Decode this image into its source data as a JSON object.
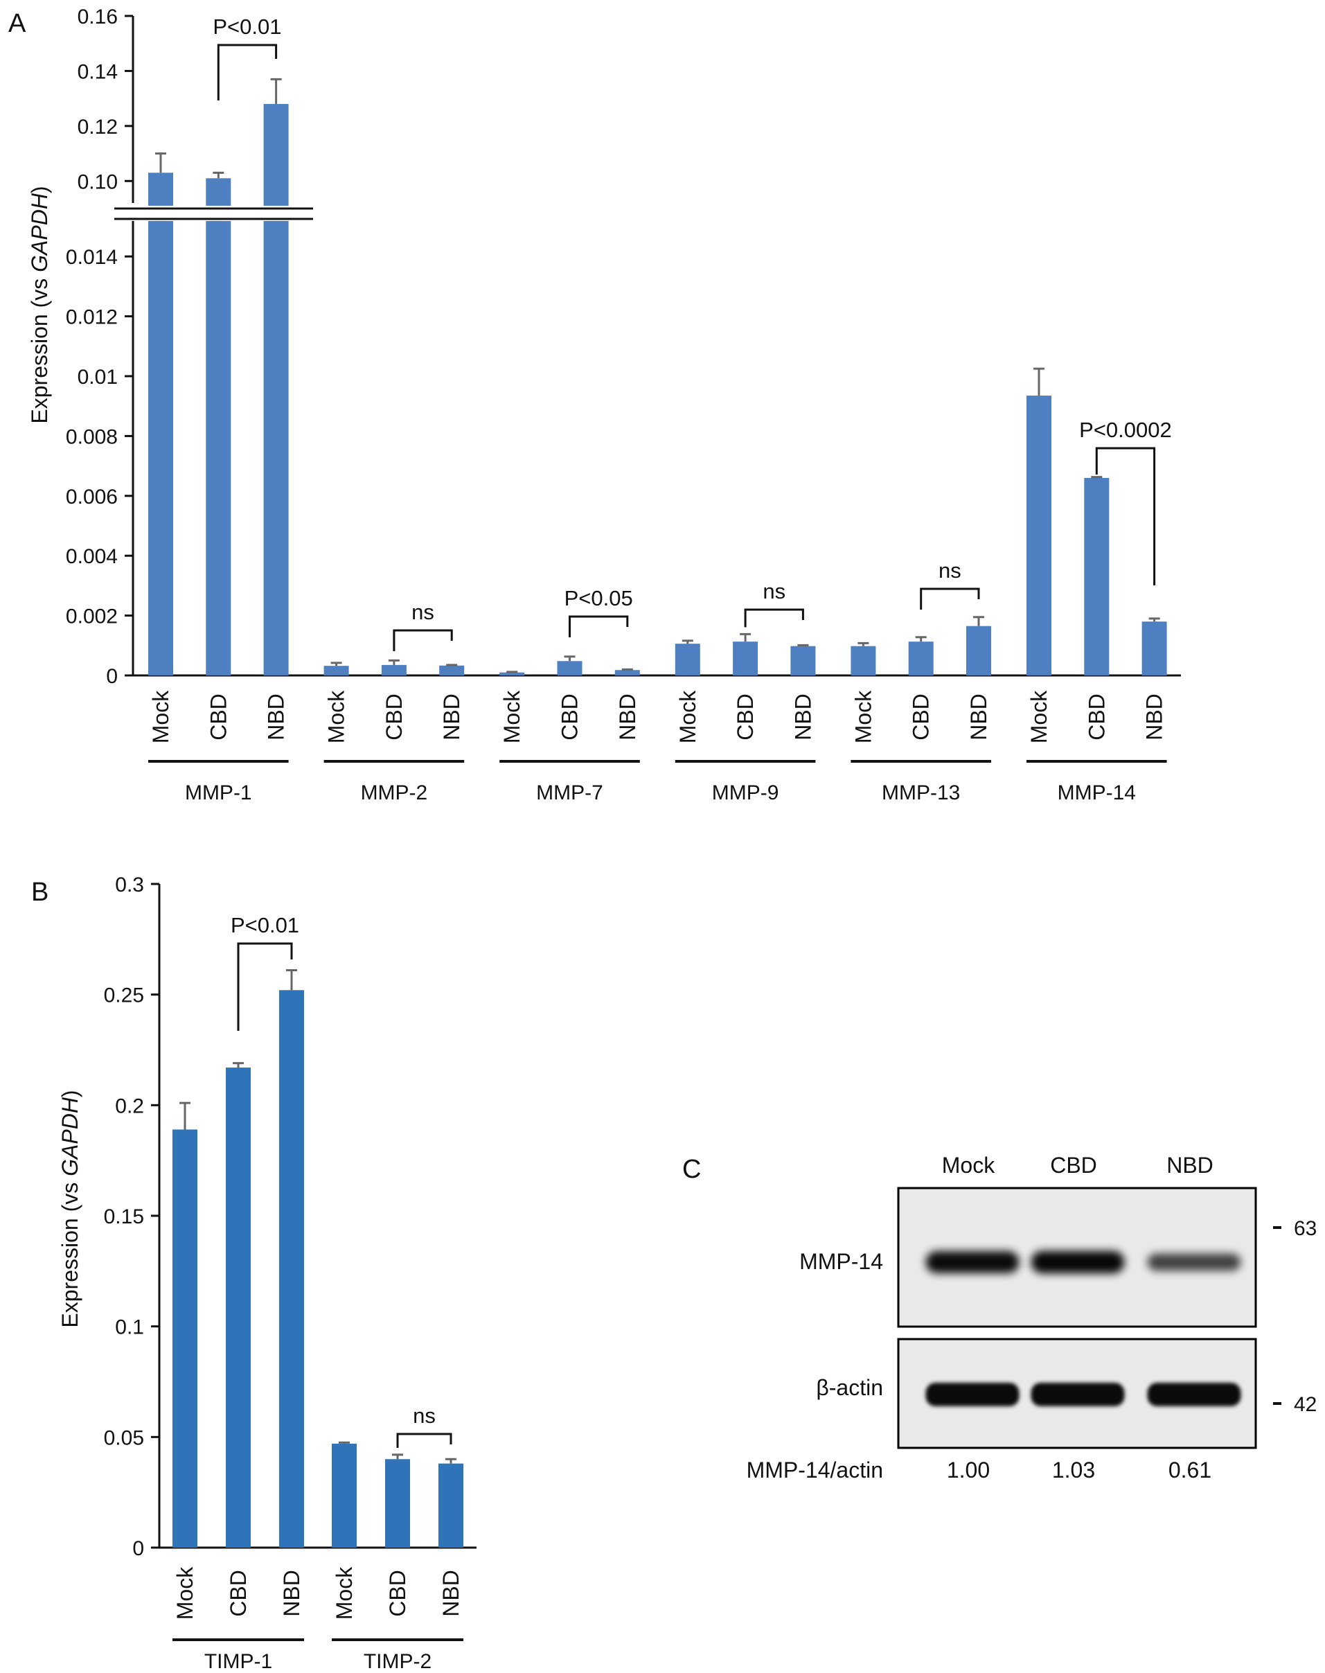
{
  "chart_data": [
    {
      "panel": "A",
      "type": "bar",
      "ylabel_prefix": "Expression (vs ",
      "ylabel_gene": "GAPDH",
      "ylabel_suffix": ")",
      "axis_break": true,
      "ylim_lower": [
        0,
        0.015
      ],
      "ylim_upper": [
        0.09,
        0.16
      ],
      "yticks_lower": [
        "0",
        "0.002",
        "0.004",
        "0.006",
        "0.008",
        "0.01",
        "0.012",
        "0.014"
      ],
      "yticks_upper": [
        "0.10",
        "0.12",
        "0.14",
        "0.16"
      ],
      "groups": [
        "MMP-1",
        "MMP-2",
        "MMP-7",
        "MMP-9",
        "MMP-13",
        "MMP-14"
      ],
      "conditions": [
        "Mock",
        "CBD",
        "NBD"
      ],
      "values": [
        [
          0.103,
          0.101,
          0.128
        ],
        [
          0.00032,
          0.00035,
          0.00033
        ],
        [
          0.0001,
          0.00048,
          0.00018
        ],
        [
          0.00106,
          0.00113,
          0.00098
        ],
        [
          0.00098,
          0.00113,
          0.00165
        ],
        [
          0.00935,
          0.0066,
          0.0018
        ]
      ],
      "errors": [
        [
          0.007,
          0.002,
          0.009
        ],
        [
          0.0001,
          0.00015,
          2e-05
        ],
        [
          2e-05,
          0.00015,
          2e-05
        ],
        [
          0.0001,
          0.00025,
          3e-05
        ],
        [
          0.0001,
          0.00015,
          0.0003
        ],
        [
          0.0009,
          3e-05,
          0.0001
        ]
      ],
      "bar_color": "#4e7fc0",
      "significance": [
        {
          "group": 0,
          "from": 1,
          "to": 2,
          "label": "P<0.01"
        },
        {
          "group": 1,
          "from": 1,
          "to": 2,
          "label": "ns"
        },
        {
          "group": 2,
          "from": 1,
          "to": 2,
          "label": "P<0.05"
        },
        {
          "group": 3,
          "from": 1,
          "to": 2,
          "label": "ns"
        },
        {
          "group": 4,
          "from": 1,
          "to": 2,
          "label": "ns"
        },
        {
          "group": 5,
          "from": 1,
          "to": 2,
          "label": "P<0.0002"
        }
      ]
    },
    {
      "panel": "B",
      "type": "bar",
      "ylabel_prefix": "Expression (vs ",
      "ylabel_gene": "GAPDH",
      "ylabel_suffix": ")",
      "ylim": [
        0,
        0.3
      ],
      "yticks": [
        "0",
        "0.05",
        "0.1",
        "0.15",
        "0.2",
        "0.25",
        "0.3"
      ],
      "groups": [
        "TIMP-1",
        "TIMP-2"
      ],
      "conditions": [
        "Mock",
        "CBD",
        "NBD"
      ],
      "values": [
        [
          0.189,
          0.217,
          0.252
        ],
        [
          0.047,
          0.04,
          0.038
        ]
      ],
      "errors": [
        [
          0.012,
          0.002,
          0.009
        ],
        [
          0.0005,
          0.002,
          0.002
        ]
      ],
      "bar_color": "#2f73b8",
      "significance": [
        {
          "group": 0,
          "from": 1,
          "to": 2,
          "label": "P<0.01"
        },
        {
          "group": 1,
          "from": 1,
          "to": 2,
          "label": "ns"
        }
      ]
    }
  ],
  "blot": {
    "panel": "C",
    "lanes": [
      "Mock",
      "CBD",
      "NBD"
    ],
    "rows": [
      "MMP-14",
      "β-actin"
    ],
    "markers": [
      "63",
      "42"
    ],
    "ratio_label": "MMP-14/actin",
    "ratios": [
      "1.00",
      "1.03",
      "0.61"
    ],
    "band_intensity": {
      "MMP-14": [
        1.0,
        1.03,
        0.61
      ],
      "beta_actin": [
        1.0,
        1.0,
        1.0
      ]
    }
  }
}
